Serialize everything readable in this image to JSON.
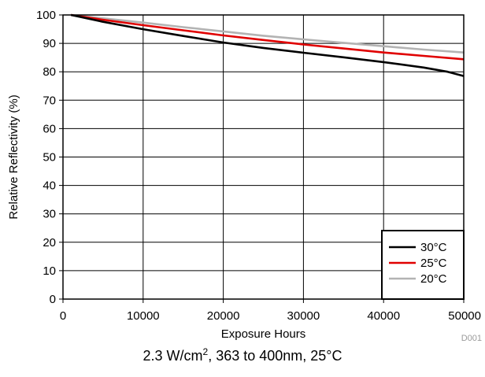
{
  "chart_data": {
    "type": "line",
    "title": "",
    "xlabel": "Exposure Hours",
    "ylabel": "Relative Reflectivity (%)",
    "xlim": [
      0,
      50000
    ],
    "ylim": [
      0,
      100
    ],
    "x_ticks": [
      "0",
      "10000",
      "20000",
      "30000",
      "40000",
      "50000"
    ],
    "y_ticks": [
      "0",
      "10",
      "20",
      "30",
      "40",
      "50",
      "60",
      "70",
      "80",
      "90",
      "100"
    ],
    "grid": true,
    "legend_position": "bottom-right",
    "series": [
      {
        "name": "30°C",
        "color": "#000000",
        "x": [
          1000,
          5000,
          10000,
          15000,
          20000,
          25000,
          30000,
          35000,
          40000,
          45000,
          48000,
          50000
        ],
        "y": [
          100,
          97.6,
          95,
          92.6,
          90.3,
          88.4,
          86.7,
          85.1,
          83.4,
          81.5,
          80,
          78.5
        ]
      },
      {
        "name": "25°C",
        "color": "#e00000",
        "x": [
          1000,
          5000,
          10000,
          15000,
          20000,
          25000,
          30000,
          35000,
          40000,
          45000,
          50000
        ],
        "y": [
          100,
          98.3,
          96.4,
          94.6,
          92.8,
          91.2,
          89.6,
          88.2,
          86.8,
          85.6,
          84.4
        ]
      },
      {
        "name": "20°C",
        "color": "#b3b3b3",
        "x": [
          1000,
          5000,
          10000,
          15000,
          20000,
          25000,
          30000,
          35000,
          40000,
          45000,
          50000
        ],
        "y": [
          100,
          98.8,
          97.3,
          95.7,
          94.2,
          92.7,
          91.4,
          90.2,
          89,
          87.8,
          86.8
        ]
      }
    ]
  },
  "figure_id": "D001",
  "caption": {
    "prefix": "2.3 W/cm",
    "superscript": "2",
    "suffix": ", 363 to 400nm, 25°C"
  }
}
